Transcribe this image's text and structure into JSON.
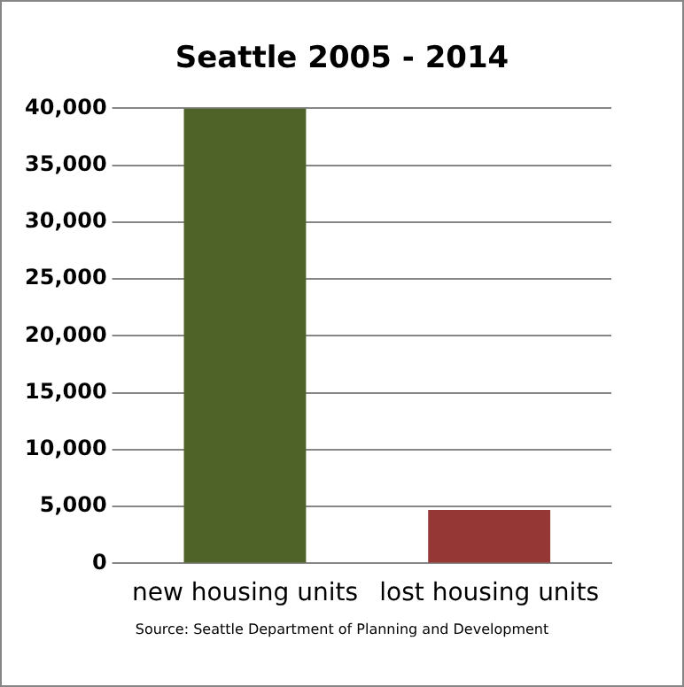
{
  "chart_data": {
    "type": "bar",
    "title": "Seattle 2005 - 2014",
    "categories": [
      "new housing units",
      "lost housing units"
    ],
    "values": [
      40000,
      4700
    ],
    "colors": [
      "#4f6228",
      "#953735"
    ],
    "ylim": [
      0,
      40000
    ],
    "yticks": [
      {
        "value": 0,
        "label": "0"
      },
      {
        "value": 5000,
        "label": "5,000"
      },
      {
        "value": 10000,
        "label": "10,000"
      },
      {
        "value": 15000,
        "label": "15,000"
      },
      {
        "value": 20000,
        "label": "20,000"
      },
      {
        "value": 25000,
        "label": "25,000"
      },
      {
        "value": 30000,
        "label": "30,000"
      },
      {
        "value": 35000,
        "label": "35,000"
      },
      {
        "value": 40000,
        "label": "40,000"
      }
    ],
    "grid": "y",
    "legend": false,
    "annotations": [
      "Source:  Seattle Department of Planning and Development"
    ]
  }
}
